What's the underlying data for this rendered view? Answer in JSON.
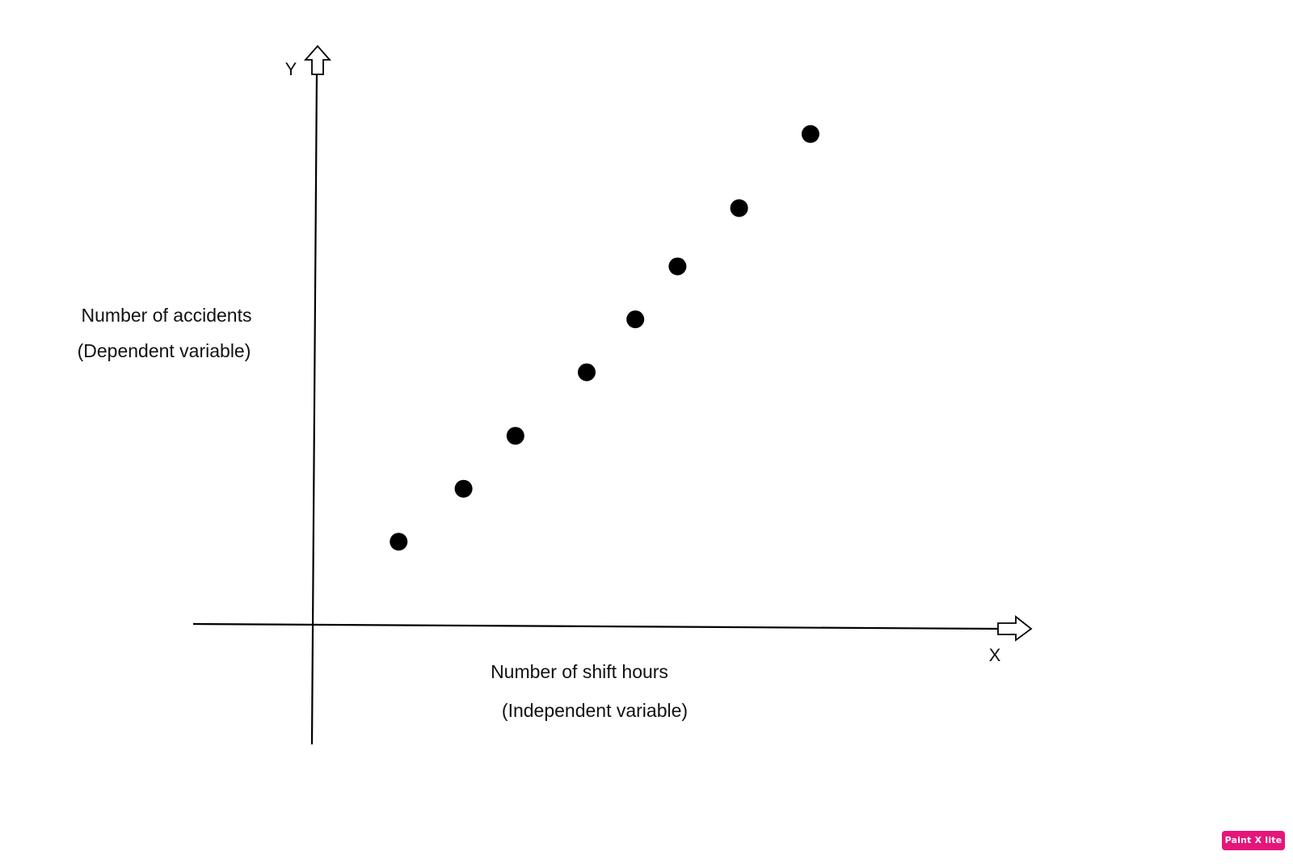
{
  "chart_data": {
    "type": "scatter",
    "title": "",
    "x_axis_letter": "X",
    "y_axis_letter": "Y",
    "xlabel_lines": [
      "Number of shift hours",
      "(Independent variable)"
    ],
    "ylabel_lines": [
      "Number of accidents",
      "(Dependent variable)"
    ],
    "xlim": [
      0,
      10
    ],
    "ylim": [
      0,
      10
    ],
    "grid": false,
    "legend": "none",
    "point_color": "#000000",
    "points": [
      {
        "x": 1.3,
        "y": 1.6
      },
      {
        "x": 2.3,
        "y": 2.6
      },
      {
        "x": 3.1,
        "y": 3.6
      },
      {
        "x": 4.2,
        "y": 4.8
      },
      {
        "x": 4.95,
        "y": 5.8
      },
      {
        "x": 5.6,
        "y": 6.8
      },
      {
        "x": 6.55,
        "y": 7.9
      },
      {
        "x": 7.65,
        "y": 9.3
      }
    ]
  },
  "watermark": {
    "text": "Paint X lite",
    "color": "#e6157a"
  }
}
